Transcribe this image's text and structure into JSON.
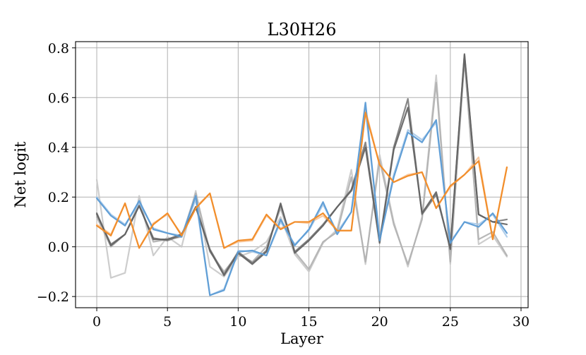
{
  "chart_data": {
    "type": "line",
    "title": "L30H26",
    "xlabel": "Layer",
    "ylabel": "Net logit",
    "xlim": [
      -1.5,
      30.5
    ],
    "ylim": [
      -0.245,
      0.825
    ],
    "xticks": [
      0,
      5,
      10,
      15,
      20,
      25,
      30
    ],
    "xtick_labels": [
      "0",
      "5",
      "10",
      "15",
      "20",
      "25",
      "30"
    ],
    "yticks": [
      -0.2,
      0.0,
      0.2,
      0.4,
      0.6,
      0.8
    ],
    "ytick_labels": [
      "−0.2",
      "0.0",
      "0.2",
      "0.4",
      "0.6",
      "0.8"
    ],
    "grid": true,
    "legend": "none",
    "x": [
      0,
      1,
      2,
      3,
      4,
      5,
      6,
      7,
      8,
      9,
      10,
      11,
      12,
      13,
      14,
      15,
      16,
      17,
      18,
      19,
      20,
      21,
      22,
      23,
      24,
      25,
      26,
      27,
      28,
      29
    ],
    "series": [
      {
        "color": "#c8c8c8",
        "opacity": 0.9,
        "values": [
          0.27,
          -0.125,
          -0.105,
          0.205,
          -0.035,
          0.04,
          0.0,
          0.225,
          -0.08,
          -0.12,
          -0.04,
          -0.02,
          0.02,
          0.12,
          -0.03,
          -0.1,
          0.015,
          0.07,
          0.31,
          -0.07,
          0.37,
          0.1,
          -0.08,
          0.12,
          0.69,
          -0.07,
          0.76,
          0.01,
          0.045,
          -0.04
        ]
      },
      {
        "color": "#b0b0b0",
        "opacity": 0.9,
        "values": [
          0.12,
          0.0,
          0.05,
          0.175,
          0.02,
          0.03,
          0.04,
          0.215,
          -0.02,
          -0.1,
          -0.03,
          -0.06,
          0.0,
          0.155,
          -0.02,
          -0.09,
          0.02,
          0.06,
          0.28,
          -0.06,
          0.35,
          0.09,
          -0.07,
          0.11,
          0.66,
          -0.06,
          0.75,
          0.03,
          0.06,
          -0.035
        ]
      },
      {
        "color": "#a9c9e8",
        "opacity": 0.9,
        "values": [
          0.2,
          0.13,
          0.09,
          0.175,
          0.075,
          0.055,
          0.045,
          0.19,
          -0.195,
          -0.17,
          -0.015,
          -0.02,
          -0.035,
          0.1,
          0.01,
          0.065,
          0.17,
          0.06,
          0.14,
          0.55,
          0.04,
          0.29,
          0.47,
          0.43,
          0.5,
          0.02,
          0.1,
          0.09,
          0.13,
          0.04
        ]
      },
      {
        "color": "#f7c396",
        "opacity": 0.9,
        "values": [
          0.09,
          0.05,
          0.175,
          -0.005,
          0.095,
          0.13,
          0.05,
          0.16,
          0.215,
          -0.005,
          0.02,
          0.025,
          0.125,
          0.075,
          0.1,
          0.095,
          0.125,
          0.065,
          0.065,
          0.55,
          0.33,
          0.26,
          0.29,
          0.3,
          0.155,
          0.24,
          0.29,
          0.36,
          0.03,
          0.32
        ]
      },
      {
        "color": "#7a7a7a",
        "opacity": 0.9,
        "values": [
          0.13,
          0.01,
          0.05,
          0.165,
          0.035,
          0.025,
          0.045,
          0.16,
          -0.01,
          -0.11,
          -0.02,
          -0.065,
          -0.015,
          0.17,
          -0.02,
          0.03,
          0.09,
          0.16,
          0.23,
          0.42,
          0.02,
          0.4,
          0.595,
          0.13,
          0.21,
          -0.005,
          0.77,
          0.13,
          0.1,
          0.11
        ]
      },
      {
        "color": "#606060",
        "opacity": 0.9,
        "values": [
          0.135,
          0.005,
          0.05,
          0.165,
          0.03,
          0.03,
          0.05,
          0.16,
          -0.015,
          -0.115,
          -0.025,
          -0.07,
          -0.02,
          0.175,
          -0.025,
          0.025,
          0.085,
          0.16,
          0.225,
          0.4,
          0.015,
          0.39,
          0.56,
          0.135,
          0.22,
          -0.01,
          0.775,
          0.13,
          0.1,
          0.09
        ]
      },
      {
        "color": "#5b9bd5",
        "opacity": 0.95,
        "values": [
          0.195,
          0.125,
          0.085,
          0.185,
          0.07,
          0.055,
          0.04,
          0.205,
          -0.195,
          -0.175,
          -0.02,
          -0.015,
          -0.035,
          0.11,
          0.005,
          0.07,
          0.18,
          0.05,
          0.14,
          0.58,
          0.025,
          0.28,
          0.46,
          0.42,
          0.51,
          0.015,
          0.1,
          0.08,
          0.135,
          0.055
        ]
      },
      {
        "color": "#f28e2b",
        "opacity": 1.0,
        "values": [
          0.085,
          0.045,
          0.175,
          -0.005,
          0.09,
          0.135,
          0.045,
          0.155,
          0.215,
          -0.005,
          0.025,
          0.03,
          0.13,
          0.07,
          0.1,
          0.1,
          0.135,
          0.065,
          0.065,
          0.54,
          0.33,
          0.26,
          0.285,
          0.3,
          0.155,
          0.245,
          0.29,
          0.345,
          0.03,
          0.32
        ]
      }
    ]
  }
}
